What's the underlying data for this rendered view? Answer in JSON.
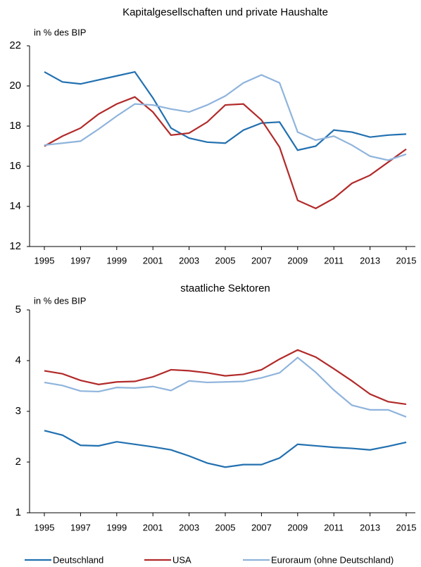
{
  "chart_data": [
    {
      "type": "line",
      "title": "Kapitalgesellschaften und private Haushalte",
      "y_label": "in % des BIP",
      "x": [
        1995,
        1996,
        1997,
        1998,
        1999,
        2000,
        2001,
        2002,
        2003,
        2004,
        2005,
        2006,
        2007,
        2008,
        2009,
        2010,
        2011,
        2012,
        2013,
        2014,
        2015
      ],
      "xlim": [
        1995,
        2015
      ],
      "xticks": [
        1995,
        1997,
        1999,
        2001,
        2003,
        2005,
        2007,
        2009,
        2011,
        2013,
        2015
      ],
      "ylim": [
        12,
        22
      ],
      "yticks": [
        12,
        14,
        16,
        18,
        20,
        22
      ],
      "series": [
        {
          "name": "Deutschland",
          "color": "#2270b0",
          "values": [
            20.7,
            20.2,
            20.1,
            20.3,
            20.5,
            20.7,
            19.4,
            17.9,
            17.4,
            17.2,
            17.15,
            17.8,
            18.15,
            18.2,
            16.8,
            17.0,
            17.8,
            17.7,
            17.45,
            17.55,
            17.6
          ]
        },
        {
          "name": "USA",
          "color": "#b22a2a",
          "values": [
            17.0,
            17.5,
            17.9,
            18.6,
            19.1,
            19.45,
            18.7,
            17.55,
            17.65,
            18.2,
            19.05,
            19.1,
            18.3,
            16.95,
            14.3,
            13.9,
            14.4,
            15.15,
            15.55,
            16.2,
            16.85
          ]
        },
        {
          "name": "Euroraum (ohne Deutschland)",
          "color": "#8fb4dc",
          "values": [
            17.05,
            17.15,
            17.25,
            17.85,
            18.5,
            19.1,
            19.05,
            18.85,
            18.7,
            19.05,
            19.5,
            20.15,
            20.55,
            20.15,
            17.7,
            17.3,
            17.5,
            17.05,
            16.5,
            16.3,
            16.6
          ]
        }
      ]
    },
    {
      "type": "line",
      "title": "staatliche Sektoren",
      "y_label": "in % des BIP",
      "x": [
        1995,
        1996,
        1997,
        1998,
        1999,
        2000,
        2001,
        2002,
        2003,
        2004,
        2005,
        2006,
        2007,
        2008,
        2009,
        2010,
        2011,
        2012,
        2013,
        2014,
        2015
      ],
      "xlim": [
        1995,
        2015
      ],
      "xticks": [
        1995,
        1997,
        1999,
        2001,
        2003,
        2005,
        2007,
        2009,
        2011,
        2013,
        2015
      ],
      "ylim": [
        1,
        5
      ],
      "yticks": [
        1,
        2,
        3,
        4,
        5
      ],
      "series": [
        {
          "color": "#2270b0",
          "values": [
            2.62,
            2.53,
            2.33,
            2.32,
            2.4,
            2.35,
            2.3,
            2.24,
            2.12,
            1.98,
            1.9,
            1.95,
            1.95,
            2.08,
            2.35,
            2.32,
            2.29,
            2.27,
            2.24,
            2.31,
            2.39
          ]
        },
        {
          "color": "#b22a2a",
          "values": [
            3.8,
            3.74,
            3.61,
            3.53,
            3.58,
            3.59,
            3.68,
            3.82,
            3.8,
            3.76,
            3.7,
            3.73,
            3.82,
            4.03,
            4.21,
            4.07,
            3.84,
            3.6,
            3.34,
            3.19,
            3.14
          ]
        },
        {
          "color": "#8fb4dc",
          "values": [
            3.57,
            3.51,
            3.4,
            3.39,
            3.47,
            3.46,
            3.49,
            3.41,
            3.6,
            3.57,
            3.58,
            3.59,
            3.66,
            3.76,
            4.06,
            3.77,
            3.42,
            3.12,
            3.03,
            3.03,
            2.89
          ]
        }
      ]
    }
  ]
}
